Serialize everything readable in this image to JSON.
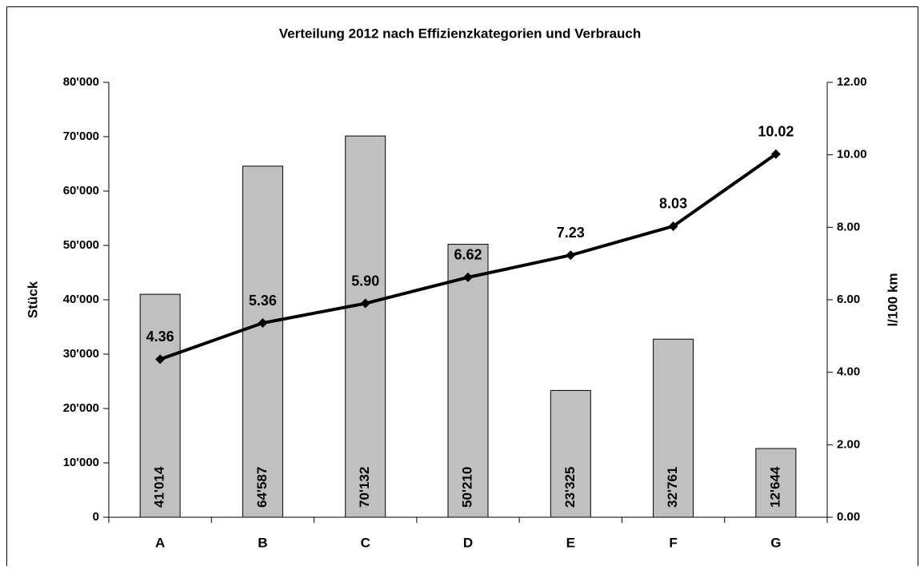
{
  "chart_data": {
    "type": "bar",
    "title": "Verteilung 2012 nach Effizienzkategorien und Verbrauch",
    "y_label": "Stück",
    "y2_label": "l/100 km",
    "categories": [
      "A",
      "B",
      "C",
      "D",
      "E",
      "F",
      "G"
    ],
    "series": [
      {
        "type": "bar",
        "color": "#c0c0c0",
        "values": [
          41014,
          64587,
          70132,
          50210,
          23325,
          32761,
          12644
        ],
        "value_labels": [
          "41'014",
          "64'587",
          "70'132",
          "50'210",
          "23'325",
          "32'761",
          "12'644"
        ]
      },
      {
        "type": "line",
        "axis": "y2",
        "color": "#000000",
        "values": [
          4.36,
          5.36,
          5.9,
          6.62,
          7.23,
          8.03,
          10.02
        ],
        "value_labels": [
          "4.36",
          "5.36",
          "5.90",
          "6.62",
          "7.23",
          "8.03",
          "10.02"
        ]
      }
    ],
    "ylim": [
      0,
      80000
    ],
    "yticks": [
      0,
      {
        "value": 10000,
        "label": "10'000"
      },
      {
        "value": 20000,
        "label": "20'000"
      },
      {
        "value": 30000,
        "label": "30'000"
      },
      {
        "value": 40000,
        "label": "40'000"
      },
      {
        "value": 50000,
        "label": "50'000"
      },
      {
        "value": 60000,
        "label": "60'000"
      },
      {
        "value": 70000,
        "label": "70'000"
      },
      {
        "value": 80000,
        "label": "80'000"
      }
    ],
    "y2lim": [
      0,
      12
    ],
    "y2ticks": [
      {
        "value": 0,
        "label": "0.00"
      },
      {
        "value": 2,
        "label": "2.00"
      },
      {
        "value": 4,
        "label": "4.00"
      },
      {
        "value": 6,
        "label": "6.00"
      },
      {
        "value": 8,
        "label": "8.00"
      },
      {
        "value": 10,
        "label": "10.00"
      },
      {
        "value": 12,
        "label": "12.00"
      }
    ],
    "grid": false
  }
}
